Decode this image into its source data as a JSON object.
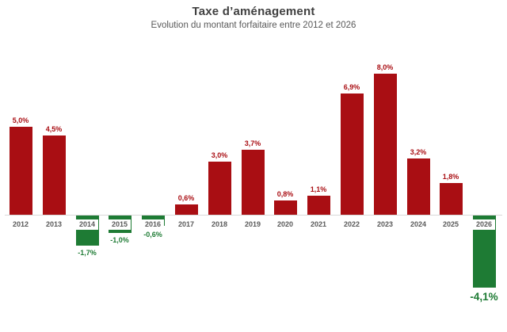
{
  "header": {
    "title": "Taxe d’aménagement",
    "subtitle": "Evolution du montant forfaitaire entre 2012 et 2026"
  },
  "colors": {
    "positive_bar": "#a90e13",
    "negative_bar": "#1e7b34",
    "title_text": "#404040",
    "subtitle_text": "#595959",
    "year_label_text": "#595959",
    "axis_line": "#d9d9d9",
    "background": "#ffffff"
  },
  "chart_data": {
    "type": "bar",
    "title": "Taxe d’aménagement",
    "subtitle": "Evolution du montant forfaitaire entre 2012 et 2026",
    "xlabel": "",
    "ylabel": "",
    "categories": [
      "2012",
      "2013",
      "2014",
      "2015",
      "2016",
      "2017",
      "2018",
      "2019",
      "2020",
      "2021",
      "2022",
      "2023",
      "2024",
      "2025",
      "2026"
    ],
    "values": [
      5.0,
      4.5,
      -1.7,
      -1.0,
      -0.6,
      0.6,
      3.0,
      3.7,
      0.8,
      1.1,
      6.9,
      8.0,
      3.2,
      1.8,
      -4.1
    ],
    "labels": [
      "5,0%",
      "4,5%",
      "-1,7%",
      "-1,0%",
      "-0,6%",
      "0,6%",
      "3,0%",
      "3,7%",
      "0,8%",
      "1,1%",
      "6,9%",
      "8,0%",
      "3,2%",
      "1,8%",
      "-4,1%"
    ],
    "unit": "%",
    "ylim": [
      -4.5,
      8.5
    ],
    "grid": false,
    "legend": false,
    "baseline": 0,
    "highlighted_last_label": "-4,1%"
  }
}
